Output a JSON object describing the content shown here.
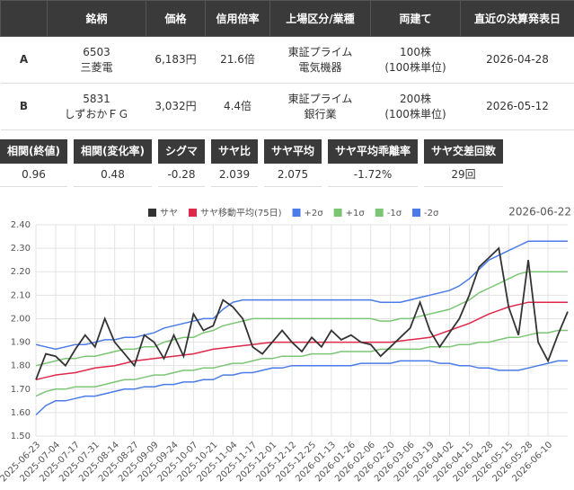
{
  "table": {
    "headers": [
      "銘柄",
      "価格",
      "信用倍率",
      "上場区分/業種",
      "両建て",
      "直近の決算発表日"
    ],
    "rows": [
      [
        "A",
        [
          "6503",
          "三菱電"
        ],
        [
          "6,183円"
        ],
        [
          "21.6倍"
        ],
        [
          "東証プライム",
          "電気機器"
        ],
        [
          "100株",
          "(100株単位)"
        ],
        [
          "2026-04-28"
        ]
      ],
      [
        "B",
        [
          "5831",
          "しずおかＦＧ"
        ],
        [
          "3,032円"
        ],
        [
          "4.4倍"
        ],
        [
          "東証プライム",
          "銀行業"
        ],
        [
          "200株",
          "(100株単位)"
        ],
        [
          "2026-05-12"
        ]
      ]
    ]
  },
  "stats": {
    "headers": [
      "相関(終値)",
      "相関(変化率)",
      "シグマ",
      "サヤ比",
      "サヤ平均",
      "サヤ平均乖離率",
      "サヤ交差回数"
    ],
    "values": [
      "0.96",
      "0.48",
      "-0.28",
      "2.039",
      "2.075",
      "-1.72%",
      "29回"
    ]
  },
  "chart_data": {
    "type": "line",
    "date_label": "2026-06-22",
    "categories": [
      "2025-06-23",
      null,
      "2025-07-04",
      null,
      "2025-07-17",
      null,
      "2025-07-31",
      null,
      "2025-08-14",
      null,
      "2025-08-27",
      null,
      "2025-09-09",
      null,
      "2025-09-24",
      null,
      "2025-10-07",
      null,
      "2025-10-21",
      null,
      "2025-11-04",
      null,
      "2025-11-17",
      null,
      "2025-12-01",
      null,
      "2025-12-12",
      null,
      "2025-12-25",
      null,
      "2026-01-13",
      null,
      "2026-01-26",
      null,
      "2026-02-06",
      null,
      "2026-02-20",
      null,
      "2026-03-06",
      null,
      "2026-03-19",
      null,
      "2026-04-02",
      null,
      "2026-04-15",
      null,
      "2026-04-28",
      null,
      "2026-05-15",
      null,
      "2026-05-28",
      null,
      "2026-06-10",
      null,
      null
    ],
    "ylim": [
      1.5,
      2.4
    ],
    "yticks": [
      {
        "value": 1.5,
        "label": "1.50"
      },
      {
        "value": 1.6,
        "label": "1.60"
      },
      {
        "value": 1.7,
        "label": "1.70"
      },
      {
        "value": 1.8,
        "label": "1.80"
      },
      {
        "value": 1.9,
        "label": "1.90"
      },
      {
        "value": 2.0,
        "label": "2.00"
      },
      {
        "value": 2.1,
        "label": "2.10"
      },
      {
        "value": 2.2,
        "label": "2.20"
      },
      {
        "value": 2.3,
        "label": "2.30"
      },
      {
        "value": 2.4,
        "label": "2.40"
      }
    ],
    "grid": true,
    "series": [
      {
        "name": "サヤ",
        "color": "#333333",
        "values": [
          1.74,
          1.85,
          1.84,
          1.8,
          1.87,
          1.93,
          1.88,
          2.0,
          1.9,
          1.85,
          1.8,
          1.93,
          1.9,
          1.83,
          1.93,
          1.84,
          2.02,
          1.95,
          1.97,
          2.08,
          2.05,
          2.0,
          1.88,
          1.85,
          1.9,
          1.95,
          1.9,
          1.86,
          1.92,
          1.88,
          1.95,
          1.91,
          1.93,
          1.9,
          1.89,
          1.84,
          1.88,
          1.92,
          1.96,
          2.07,
          1.95,
          1.88,
          1.94,
          2.0,
          2.1,
          2.22,
          2.26,
          2.3,
          2.05,
          1.93,
          2.25,
          1.9,
          1.82,
          1.93,
          2.03
        ]
      },
      {
        "name": "サヤ移動平均(75日)",
        "color": "#e0284b",
        "values": [
          1.74,
          1.75,
          1.76,
          1.765,
          1.77,
          1.78,
          1.79,
          1.795,
          1.8,
          1.81,
          1.82,
          1.825,
          1.83,
          1.835,
          1.84,
          1.845,
          1.85,
          1.86,
          1.87,
          1.875,
          1.88,
          1.885,
          1.89,
          1.895,
          1.9,
          1.9,
          1.9,
          1.9,
          1.9,
          1.9,
          1.9,
          1.9,
          1.9,
          1.9,
          1.9,
          1.9,
          1.9,
          1.905,
          1.91,
          1.915,
          1.92,
          1.935,
          1.95,
          1.965,
          1.98,
          2.0,
          2.02,
          2.035,
          2.05,
          2.06,
          2.07,
          2.07,
          2.07,
          2.07,
          2.07
        ]
      },
      {
        "name": "+2σ",
        "color": "#4a7be8",
        "values": [
          1.89,
          1.88,
          1.87,
          1.88,
          1.89,
          1.89,
          1.9,
          1.91,
          1.91,
          1.92,
          1.92,
          1.93,
          1.94,
          1.96,
          1.97,
          1.98,
          1.99,
          2.0,
          2.0,
          2.04,
          2.07,
          2.08,
          2.08,
          2.08,
          2.08,
          2.08,
          2.08,
          2.08,
          2.08,
          2.08,
          2.08,
          2.08,
          2.08,
          2.08,
          2.08,
          2.07,
          2.07,
          2.07,
          2.08,
          2.09,
          2.1,
          2.11,
          2.12,
          2.14,
          2.17,
          2.21,
          2.25,
          2.27,
          2.29,
          2.31,
          2.33,
          2.33,
          2.33,
          2.33,
          2.33
        ]
      },
      {
        "name": "+1σ",
        "color": "#7cc574",
        "values": [
          1.8,
          1.81,
          1.82,
          1.83,
          1.83,
          1.84,
          1.84,
          1.85,
          1.86,
          1.87,
          1.87,
          1.88,
          1.88,
          1.9,
          1.91,
          1.92,
          1.92,
          1.94,
          1.95,
          1.97,
          1.98,
          1.99,
          2.0,
          2.0,
          2.0,
          2.0,
          2.0,
          2.0,
          2.0,
          2.0,
          2.0,
          2.0,
          2.0,
          2.0,
          2.0,
          1.99,
          1.99,
          2.0,
          2.0,
          2.01,
          2.02,
          2.03,
          2.04,
          2.06,
          2.08,
          2.11,
          2.13,
          2.15,
          2.17,
          2.19,
          2.2,
          2.2,
          2.2,
          2.2,
          2.2
        ]
      },
      {
        "name": "-1σ",
        "color": "#7cc574",
        "values": [
          1.67,
          1.69,
          1.7,
          1.7,
          1.71,
          1.71,
          1.71,
          1.72,
          1.73,
          1.74,
          1.74,
          1.75,
          1.76,
          1.76,
          1.77,
          1.78,
          1.78,
          1.79,
          1.79,
          1.8,
          1.81,
          1.81,
          1.82,
          1.83,
          1.83,
          1.84,
          1.84,
          1.84,
          1.85,
          1.85,
          1.85,
          1.86,
          1.86,
          1.86,
          1.86,
          1.87,
          1.87,
          1.87,
          1.87,
          1.87,
          1.88,
          1.88,
          1.88,
          1.89,
          1.89,
          1.9,
          1.9,
          1.91,
          1.92,
          1.92,
          1.93,
          1.94,
          1.94,
          1.95,
          1.95
        ]
      },
      {
        "name": "-2σ",
        "color": "#4a7be8",
        "values": [
          1.59,
          1.63,
          1.65,
          1.65,
          1.66,
          1.67,
          1.67,
          1.68,
          1.69,
          1.7,
          1.7,
          1.71,
          1.71,
          1.72,
          1.72,
          1.73,
          1.73,
          1.74,
          1.74,
          1.76,
          1.76,
          1.77,
          1.77,
          1.78,
          1.79,
          1.79,
          1.8,
          1.8,
          1.8,
          1.8,
          1.8,
          1.8,
          1.8,
          1.81,
          1.81,
          1.81,
          1.81,
          1.82,
          1.82,
          1.82,
          1.82,
          1.81,
          1.81,
          1.8,
          1.8,
          1.79,
          1.79,
          1.78,
          1.78,
          1.78,
          1.79,
          1.8,
          1.81,
          1.82,
          1.82
        ]
      }
    ]
  }
}
